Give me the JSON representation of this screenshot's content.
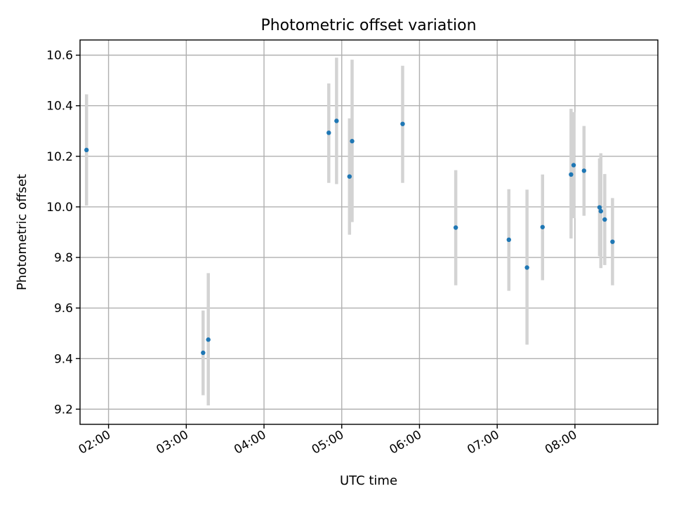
{
  "chart_data": {
    "type": "scatter",
    "title": "Photometric offset variation",
    "xlabel": "UTC time",
    "ylabel": "Photometric offset",
    "x_axis": {
      "kind": "time",
      "range": [
        "01:38",
        "09:04"
      ],
      "ticks": [
        "02:00",
        "03:00",
        "04:00",
        "05:00",
        "06:00",
        "07:00",
        "08:00"
      ]
    },
    "y_axis": {
      "range": [
        9.14,
        10.66
      ],
      "ticks": [
        "9.2",
        "9.4",
        "9.6",
        "9.8",
        "10.0",
        "10.2",
        "10.4",
        "10.6"
      ]
    },
    "grid": true,
    "colors": {
      "point": "#1f77b4",
      "errorbar": "#d3d3d3"
    },
    "points": [
      {
        "time": "01:43",
        "y": 10.225,
        "lo": 10.005,
        "hi": 10.445
      },
      {
        "time": "03:13",
        "y": 9.423,
        "lo": 9.255,
        "hi": 9.59
      },
      {
        "time": "03:17",
        "y": 9.475,
        "lo": 9.215,
        "hi": 9.738
      },
      {
        "time": "04:50",
        "y": 10.293,
        "lo": 10.095,
        "hi": 10.488
      },
      {
        "time": "04:56",
        "y": 10.34,
        "lo": 10.09,
        "hi": 10.59
      },
      {
        "time": "05:06",
        "y": 10.12,
        "lo": 9.89,
        "hi": 10.35
      },
      {
        "time": "05:08",
        "y": 10.26,
        "lo": 9.94,
        "hi": 10.582
      },
      {
        "time": "05:47",
        "y": 10.328,
        "lo": 10.095,
        "hi": 10.558
      },
      {
        "time": "06:28",
        "y": 9.918,
        "lo": 9.69,
        "hi": 10.145
      },
      {
        "time": "07:09",
        "y": 9.87,
        "lo": 9.668,
        "hi": 10.07
      },
      {
        "time": "07:23",
        "y": 9.76,
        "lo": 9.455,
        "hi": 10.068
      },
      {
        "time": "07:35",
        "y": 9.92,
        "lo": 9.71,
        "hi": 10.128
      },
      {
        "time": "07:57",
        "y": 10.128,
        "lo": 9.875,
        "hi": 10.388
      },
      {
        "time": "07:59",
        "y": 10.165,
        "lo": 9.955,
        "hi": 10.375
      },
      {
        "time": "08:07",
        "y": 10.143,
        "lo": 9.965,
        "hi": 10.32
      },
      {
        "time": "08:19",
        "y": 9.998,
        "lo": 9.805,
        "hi": 10.192
      },
      {
        "time": "08:20",
        "y": 9.983,
        "lo": 9.758,
        "hi": 10.212
      },
      {
        "time": "08:23",
        "y": 9.95,
        "lo": 9.77,
        "hi": 10.13
      },
      {
        "time": "08:29",
        "y": 9.862,
        "lo": 9.69,
        "hi": 10.035
      }
    ]
  }
}
